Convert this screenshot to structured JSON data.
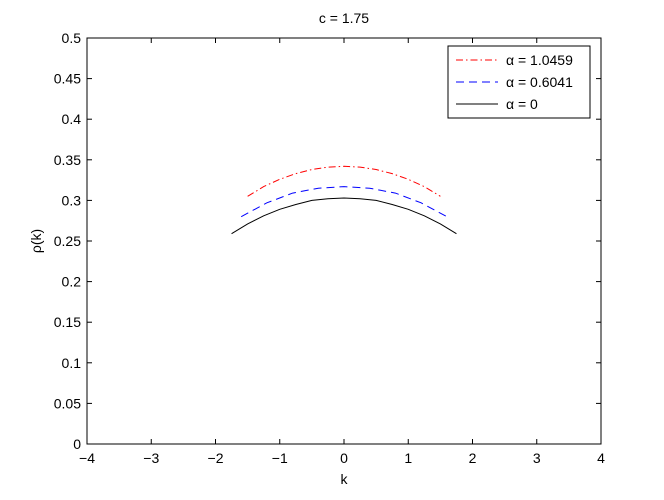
{
  "chart_data": {
    "type": "line",
    "title": "c = 1.75",
    "xlabel": "k",
    "ylabel": "ρ(k)",
    "xlim": [
      -4,
      4
    ],
    "ylim": [
      0,
      0.5
    ],
    "xticks": [
      -4,
      -3,
      -2,
      -1,
      0,
      1,
      2,
      3,
      4
    ],
    "xtick_labels": [
      "−4",
      "−3",
      "−2",
      "−1",
      "0",
      "1",
      "2",
      "3",
      "4"
    ],
    "yticks": [
      0,
      0.05,
      0.1,
      0.15,
      0.2,
      0.25,
      0.3,
      0.35,
      0.4,
      0.45,
      0.5
    ],
    "ytick_labels": [
      "0",
      "0.05",
      "0.1",
      "0.15",
      "0.2",
      "0.25",
      "0.3",
      "0.35",
      "0.4",
      "0.45",
      "0.5"
    ],
    "grid": false,
    "legend_position": "top-right",
    "series": [
      {
        "name": "α = 1.0459",
        "color": "#ff0000",
        "dash": "dashdot",
        "x": [
          -1.5,
          -1.25,
          -1.0,
          -0.75,
          -0.5,
          -0.25,
          0,
          0.25,
          0.5,
          0.75,
          1.0,
          1.25,
          1.5
        ],
        "y": [
          0.305,
          0.317,
          0.326,
          0.333,
          0.338,
          0.341,
          0.342,
          0.341,
          0.338,
          0.333,
          0.326,
          0.317,
          0.305
        ]
      },
      {
        "name": "α = 0.6041",
        "color": "#0000ff",
        "dash": "dashed",
        "x": [
          -1.6,
          -1.2,
          -0.8,
          -0.4,
          0,
          0.4,
          0.8,
          1.2,
          1.6
        ],
        "y": [
          0.28,
          0.297,
          0.309,
          0.315,
          0.317,
          0.315,
          0.309,
          0.297,
          0.28
        ]
      },
      {
        "name": "α = 0",
        "color": "#000000",
        "dash": "solid",
        "x": [
          -1.75,
          -1.5,
          -1.25,
          -1.0,
          -0.75,
          -0.5,
          -0.25,
          0,
          0.25,
          0.5,
          0.75,
          1.0,
          1.25,
          1.5,
          1.75
        ],
        "y": [
          0.259,
          0.271,
          0.281,
          0.289,
          0.295,
          0.3,
          0.302,
          0.303,
          0.302,
          0.3,
          0.295,
          0.289,
          0.281,
          0.271,
          0.259
        ]
      }
    ]
  }
}
